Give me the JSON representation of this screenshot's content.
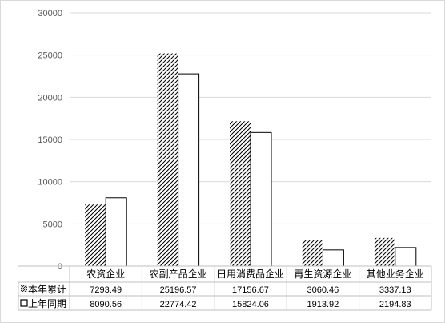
{
  "chart_data": {
    "type": "bar",
    "categories": [
      "农资企业",
      "农副产品企业",
      "日用消费品企业",
      "再生资源企业",
      "其他业务企业"
    ],
    "series": [
      {
        "name": "本年累计",
        "values": [
          7293.49,
          25196.57,
          17156.67,
          3060.46,
          3337.13
        ],
        "pattern": "diagonal-hatch"
      },
      {
        "name": "上年同期",
        "values": [
          8090.56,
          22774.42,
          15824.06,
          1913.92,
          2194.83
        ],
        "pattern": "solid-white"
      }
    ],
    "table_values": [
      [
        "7293.49",
        "25196.57",
        "17156.67",
        "3060.46",
        "3337.13"
      ],
      [
        "8090.56",
        "22774.42",
        "15824.06",
        "1913.92",
        "2194.83"
      ]
    ],
    "ylim": [
      0,
      30000
    ],
    "yticks": [
      0,
      5000,
      10000,
      15000,
      20000,
      25000,
      30000
    ],
    "ytick_labels": [
      "0",
      "5000",
      "10000",
      "15000",
      "20000",
      "25000",
      "30000"
    ],
    "title": "",
    "xlabel": "",
    "ylabel": "",
    "grid": true,
    "legend": "data-table",
    "colors": {
      "bar_stroke": "#000000",
      "bar_fill": "#ffffff",
      "grid": "#d9d9d9",
      "tick_text": "#595959"
    }
  }
}
